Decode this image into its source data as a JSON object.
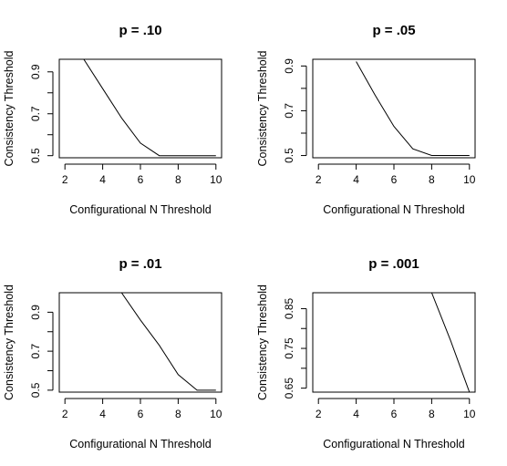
{
  "chart_data": [
    {
      "type": "line",
      "title": "p = .10",
      "xlabel": "Configurational N Threshold",
      "ylabel": "Consistency Threshold",
      "xlim": [
        1.7,
        10.3
      ],
      "ylim": [
        0.49,
        0.96
      ],
      "xticks": [
        2,
        4,
        6,
        8,
        10
      ],
      "xtick_labels": [
        "2",
        "4",
        "6",
        "8",
        "10"
      ],
      "yticks": [
        0.5,
        0.6,
        0.7,
        0.8,
        0.9
      ],
      "ytick_labels": [
        "0.5",
        "",
        "0.7",
        "",
        "0.9"
      ],
      "x": [
        3,
        4,
        5,
        6,
        7,
        8,
        9,
        10
      ],
      "y": [
        0.96,
        0.82,
        0.68,
        0.56,
        0.5,
        0.5,
        0.5,
        0.5
      ]
    },
    {
      "type": "line",
      "title": "p = .05",
      "xlabel": "Configurational N Threshold",
      "ylabel": "Consistency Threshold",
      "xlim": [
        1.7,
        10.3
      ],
      "ylim": [
        0.49,
        0.93
      ],
      "xticks": [
        2,
        4,
        6,
        8,
        10
      ],
      "xtick_labels": [
        "2",
        "4",
        "6",
        "8",
        "10"
      ],
      "yticks": [
        0.5,
        0.6,
        0.7,
        0.8,
        0.9
      ],
      "ytick_labels": [
        "0.5",
        "",
        "0.7",
        "",
        "0.9"
      ],
      "x": [
        4,
        5,
        6,
        7,
        8,
        9,
        10
      ],
      "y": [
        0.92,
        0.77,
        0.63,
        0.53,
        0.5,
        0.5,
        0.5
      ]
    },
    {
      "type": "line",
      "title": "p = .01",
      "xlabel": "Configurational N Threshold",
      "ylabel": "Consistency Threshold",
      "xlim": [
        1.7,
        10.3
      ],
      "ylim": [
        0.49,
        1.0
      ],
      "xticks": [
        2,
        4,
        6,
        8,
        10
      ],
      "xtick_labels": [
        "2",
        "4",
        "6",
        "8",
        "10"
      ],
      "yticks": [
        0.5,
        0.6,
        0.7,
        0.8,
        0.9
      ],
      "ytick_labels": [
        "0.5",
        "",
        "0.7",
        "",
        "0.9"
      ],
      "x": [
        5,
        6,
        7,
        8,
        9,
        10
      ],
      "y": [
        1.0,
        0.86,
        0.73,
        0.58,
        0.5,
        0.5
      ]
    },
    {
      "type": "line",
      "title": "p = .001",
      "xlabel": "Configurational N Threshold",
      "ylabel": "Consistency Threshold",
      "xlim": [
        1.7,
        10.3
      ],
      "ylim": [
        0.64,
        0.89
      ],
      "xticks": [
        2,
        4,
        6,
        8,
        10
      ],
      "xtick_labels": [
        "2",
        "4",
        "6",
        "8",
        "10"
      ],
      "yticks": [
        0.65,
        0.7,
        0.75,
        0.8,
        0.85
      ],
      "ytick_labels": [
        "0.65",
        "",
        "0.75",
        "",
        "0.85"
      ],
      "x": [
        8,
        9,
        10
      ],
      "y": [
        0.89,
        0.77,
        0.64
      ]
    }
  ]
}
